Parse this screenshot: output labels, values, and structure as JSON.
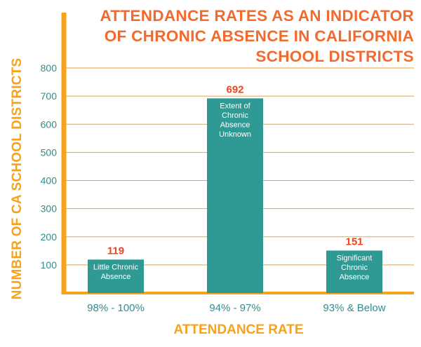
{
  "chart_data": {
    "type": "bar",
    "title": "ATTENDANCE RATES AS AN INDICATOR OF CHRONIC ABSENCE IN CALIFORNIA SCHOOL DISTRICTS",
    "title_lines": [
      "ATTENDANCE RATES AS AN INDICATOR",
      "OF CHRONIC ABSENCE IN CALIFORNIA",
      "SCHOOL DISTRICTS"
    ],
    "xlabel": "ATTENDANCE RATE",
    "ylabel": "NUMBER OF CA SCHOOL DISTRICTS",
    "categories": [
      "98% - 100%",
      "94% - 97%",
      "93% & Below"
    ],
    "values": [
      119,
      692,
      151
    ],
    "data_labels": [
      "119",
      "692",
      "151"
    ],
    "bar_text": [
      [
        "Little Chronic",
        "Absence"
      ],
      [
        "Extent of",
        "Chronic",
        "Absence",
        "Unknown"
      ],
      [
        "Significant",
        "Chronic",
        "Absence"
      ]
    ],
    "ylim": [
      0,
      800
    ],
    "yticks": [
      100,
      200,
      300,
      400,
      500,
      600,
      700,
      800
    ],
    "grid": true,
    "colors": {
      "bar": "#2e9a93",
      "title": "#f26a2e",
      "axis": "#f7a21b",
      "grid": "#f7a21b",
      "tick": "#2f8f8f",
      "data_label": "#e8461e"
    }
  }
}
